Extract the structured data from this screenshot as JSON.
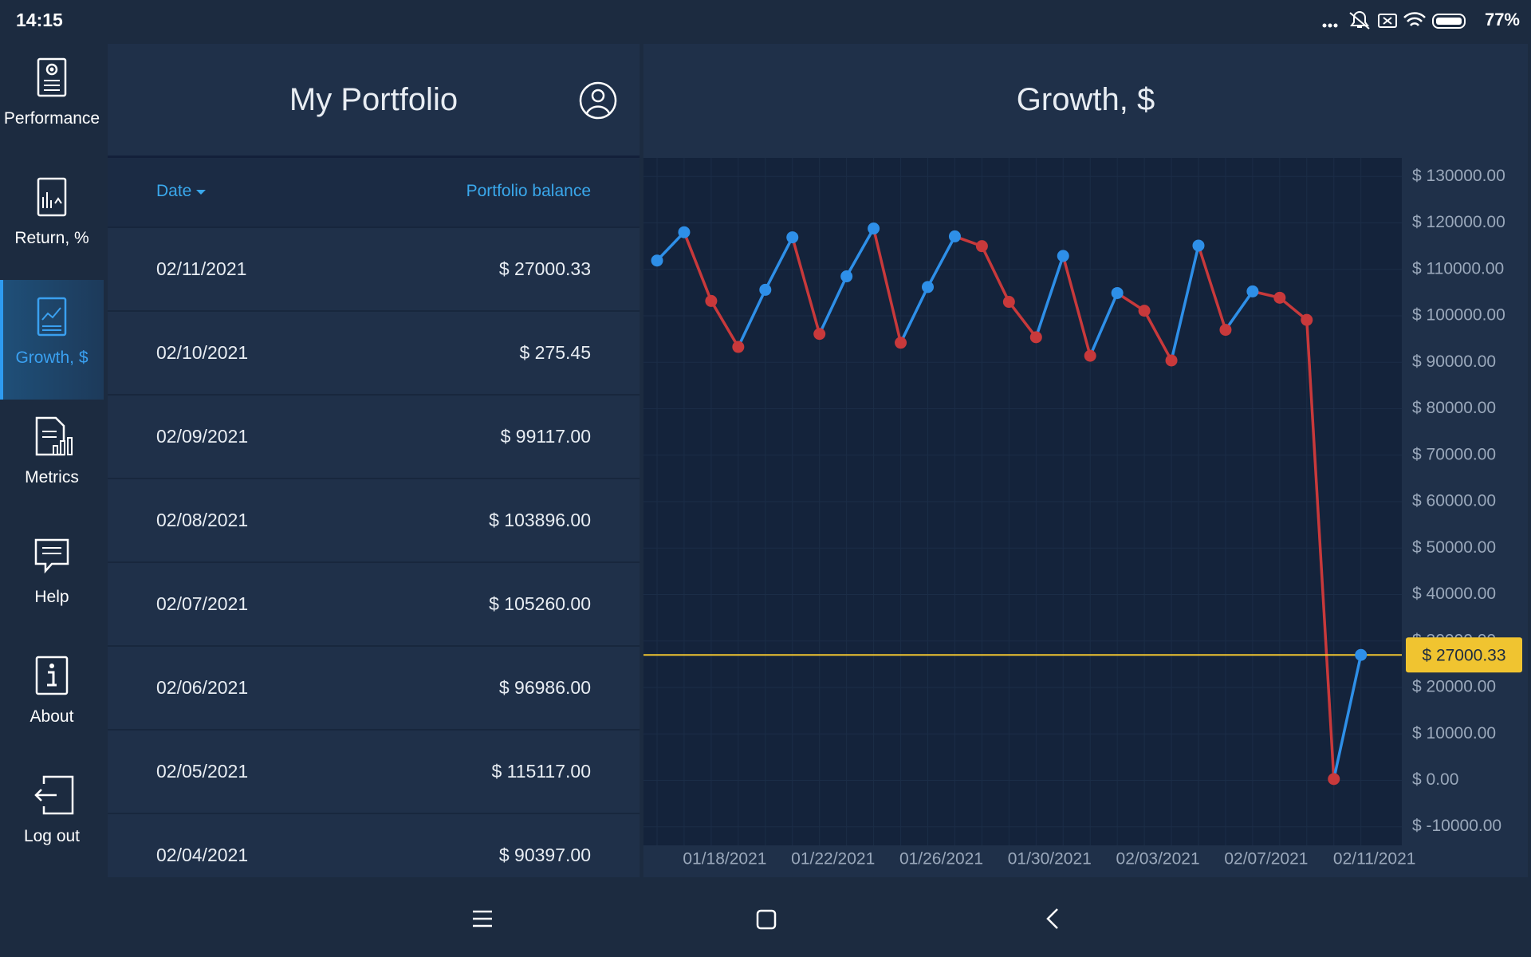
{
  "status_bar": {
    "time": "14:15",
    "battery": "77%"
  },
  "sidebar": {
    "items": [
      {
        "label": "Performance"
      },
      {
        "label": "Return, %"
      },
      {
        "label": "Growth, $"
      },
      {
        "label": "Metrics"
      },
      {
        "label": "Help"
      },
      {
        "label": "About"
      },
      {
        "label": "Log out"
      }
    ],
    "active": 2
  },
  "portfolio": {
    "title": "My Portfolio",
    "columns": [
      "Date",
      "Portfolio balance"
    ],
    "rows": [
      [
        "02/11/2021",
        "$ 27000.33"
      ],
      [
        "02/10/2021",
        "$ 275.45"
      ],
      [
        "02/09/2021",
        "$ 99117.00"
      ],
      [
        "02/08/2021",
        "$ 103896.00"
      ],
      [
        "02/07/2021",
        "$ 105260.00"
      ],
      [
        "02/06/2021",
        "$ 96986.00"
      ],
      [
        "02/05/2021",
        "$ 115117.00"
      ],
      [
        "02/04/2021",
        "$ 90397.00"
      ]
    ]
  },
  "chart_data": {
    "type": "line",
    "title": "Growth, $",
    "categories": [
      "01/16/2021",
      "01/17/2021",
      "01/18/2021",
      "01/19/2021",
      "01/20/2021",
      "01/21/2021",
      "01/22/2021",
      "01/23/2021",
      "01/24/2021",
      "01/25/2021",
      "01/26/2021",
      "01/27/2021",
      "01/28/2021",
      "01/29/2021",
      "01/30/2021",
      "01/31/2021",
      "02/01/2021",
      "02/02/2021",
      "02/03/2021",
      "02/04/2021",
      "02/05/2021",
      "02/06/2021",
      "02/07/2021",
      "02/08/2021",
      "02/09/2021",
      "02/10/2021",
      "02/11/2021"
    ],
    "values": [
      111900,
      118000,
      103200,
      93300,
      105600,
      116900,
      96100,
      108500,
      118800,
      94200,
      106200,
      117100,
      115000,
      103000,
      95400,
      112900,
      91400,
      104900,
      101100,
      90397,
      115117,
      96986,
      105260,
      103896,
      99117,
      275.45,
      27000.33
    ],
    "up_color": "#2e8fe8",
    "down_color": "#c8393b",
    "ylim": [
      -14000,
      134000
    ],
    "yticks": [
      {
        "value": -10000,
        "label": "$ -10000.00"
      },
      {
        "value": 0,
        "label": "$ 0.00"
      },
      {
        "value": 10000,
        "label": "$ 10000.00"
      },
      {
        "value": 20000,
        "label": "$ 20000.00"
      },
      {
        "value": 30000,
        "label": "$ 30000.00"
      },
      {
        "value": 40000,
        "label": "$ 40000.00"
      },
      {
        "value": 50000,
        "label": "$ 50000.00"
      },
      {
        "value": 60000,
        "label": "$ 60000.00"
      },
      {
        "value": 70000,
        "label": "$ 70000.00"
      },
      {
        "value": 80000,
        "label": "$ 80000.00"
      },
      {
        "value": 90000,
        "label": "$ 90000.00"
      },
      {
        "value": 100000,
        "label": "$ 100000.00"
      },
      {
        "value": 110000,
        "label": "$ 110000.00"
      },
      {
        "value": 120000,
        "label": "$ 120000.00"
      },
      {
        "value": 130000,
        "label": "$ 130000.00"
      }
    ],
    "xticks": [
      "01/18/2021",
      "01/22/2021",
      "01/26/2021",
      "01/30/2021",
      "02/03/2021",
      "02/07/2021",
      "02/11/2021"
    ],
    "grid": true,
    "marker": {
      "value": 27000.33,
      "label": "$ 27000.33",
      "color": "#f0c430"
    }
  }
}
